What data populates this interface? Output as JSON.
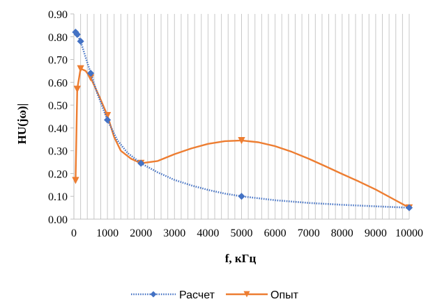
{
  "chart_data": {
    "type": "line",
    "xlabel": "f, кГц",
    "ylabel": "HU(jω)|",
    "xlim": [
      0,
      10000
    ],
    "ylim": [
      0,
      0.9
    ],
    "x_ticks": [
      0,
      1000,
      2000,
      3000,
      4000,
      5000,
      6000,
      7000,
      8000,
      9000,
      10000
    ],
    "y_ticks": [
      "0.00",
      "0.10",
      "0.20",
      "0.30",
      "0.40",
      "0.50",
      "0.60",
      "0.70",
      "0.80",
      "0.90"
    ],
    "x_minor_step": 200,
    "grid": "vertical",
    "legend_position": "bottom",
    "series": [
      {
        "name": "Расчет",
        "color": "#4472c4",
        "line_style": "dotted",
        "marker": "diamond",
        "markers": [
          {
            "x": 50,
            "y": 0.82
          },
          {
            "x": 100,
            "y": 0.81
          },
          {
            "x": 200,
            "y": 0.78
          },
          {
            "x": 500,
            "y": 0.64
          },
          {
            "x": 1000,
            "y": 0.435
          },
          {
            "x": 2000,
            "y": 0.245
          },
          {
            "x": 5000,
            "y": 0.1
          },
          {
            "x": 10000,
            "y": 0.05
          }
        ],
        "curve": [
          {
            "x": 50,
            "y": 0.82
          },
          {
            "x": 100,
            "y": 0.81
          },
          {
            "x": 200,
            "y": 0.78
          },
          {
            "x": 350,
            "y": 0.71
          },
          {
            "x": 500,
            "y": 0.64
          },
          {
            "x": 700,
            "y": 0.55
          },
          {
            "x": 1000,
            "y": 0.435
          },
          {
            "x": 1300,
            "y": 0.345
          },
          {
            "x": 1600,
            "y": 0.29
          },
          {
            "x": 2000,
            "y": 0.245
          },
          {
            "x": 2500,
            "y": 0.205
          },
          {
            "x": 3000,
            "y": 0.172
          },
          {
            "x": 3500,
            "y": 0.148
          },
          {
            "x": 4000,
            "y": 0.128
          },
          {
            "x": 4500,
            "y": 0.112
          },
          {
            "x": 5000,
            "y": 0.1
          },
          {
            "x": 6000,
            "y": 0.083
          },
          {
            "x": 7000,
            "y": 0.071
          },
          {
            "x": 8000,
            "y": 0.063
          },
          {
            "x": 9000,
            "y": 0.056
          },
          {
            "x": 10000,
            "y": 0.05
          }
        ]
      },
      {
        "name": "Опыт",
        "color": "#ed7d31",
        "line_style": "solid",
        "marker": "triangle-down",
        "markers": [
          {
            "x": 50,
            "y": 0.17
          },
          {
            "x": 100,
            "y": 0.57
          },
          {
            "x": 200,
            "y": 0.66
          },
          {
            "x": 500,
            "y": 0.62
          },
          {
            "x": 1000,
            "y": 0.455
          },
          {
            "x": 2000,
            "y": 0.245
          },
          {
            "x": 5000,
            "y": 0.345
          },
          {
            "x": 10000,
            "y": 0.05
          }
        ],
        "curve": [
          {
            "x": 50,
            "y": 0.17
          },
          {
            "x": 100,
            "y": 0.57
          },
          {
            "x": 200,
            "y": 0.66
          },
          {
            "x": 350,
            "y": 0.65
          },
          {
            "x": 500,
            "y": 0.62
          },
          {
            "x": 750,
            "y": 0.54
          },
          {
            "x": 1000,
            "y": 0.455
          },
          {
            "x": 1200,
            "y": 0.36
          },
          {
            "x": 1400,
            "y": 0.3
          },
          {
            "x": 1700,
            "y": 0.265
          },
          {
            "x": 2000,
            "y": 0.245
          },
          {
            "x": 2500,
            "y": 0.255
          },
          {
            "x": 3000,
            "y": 0.285
          },
          {
            "x": 3500,
            "y": 0.31
          },
          {
            "x": 4000,
            "y": 0.33
          },
          {
            "x": 4500,
            "y": 0.342
          },
          {
            "x": 5000,
            "y": 0.345
          },
          {
            "x": 5500,
            "y": 0.337
          },
          {
            "x": 6000,
            "y": 0.32
          },
          {
            "x": 6500,
            "y": 0.295
          },
          {
            "x": 7000,
            "y": 0.265
          },
          {
            "x": 7500,
            "y": 0.232
          },
          {
            "x": 8000,
            "y": 0.198
          },
          {
            "x": 8500,
            "y": 0.165
          },
          {
            "x": 9000,
            "y": 0.13
          },
          {
            "x": 9500,
            "y": 0.09
          },
          {
            "x": 10000,
            "y": 0.05
          }
        ]
      }
    ]
  }
}
